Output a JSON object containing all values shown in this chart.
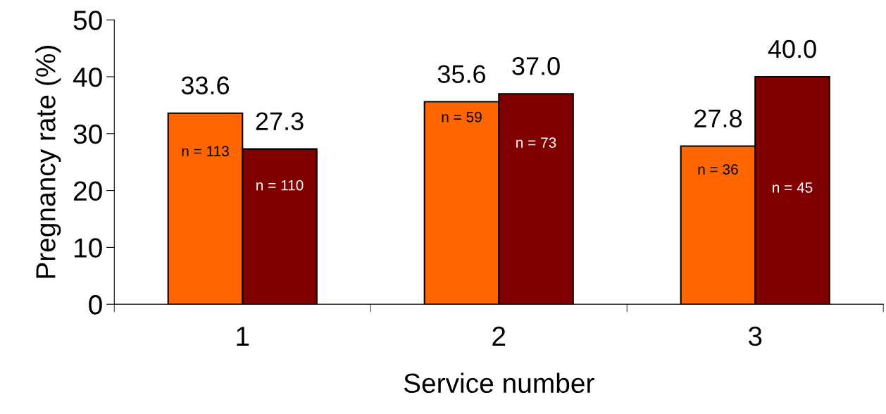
{
  "chart_data": {
    "type": "bar",
    "xlabel": "Service number",
    "ylabel": "Pregnancy rate (%)",
    "categories": [
      "1",
      "2",
      "3"
    ],
    "series": [
      {
        "color": "#ff6600",
        "values": [
          33.6,
          35.6,
          27.8
        ],
        "value_labels": [
          "33.6",
          "35.6",
          "27.8"
        ]
      },
      {
        "color": "#800000",
        "values": [
          27.3,
          37.0,
          40.0
        ],
        "value_labels": [
          "27.3",
          "37.0",
          "40.0"
        ]
      }
    ],
    "ylim": [
      0,
      50
    ],
    "yticks": [
      0,
      10,
      20,
      30,
      40,
      50
    ],
    "grid": false,
    "legend": false,
    "annotations": [
      {
        "text": "n = 113",
        "x": "1",
        "y": 26.7
      },
      {
        "text": "n = 110",
        "x": "1",
        "y": 20.7
      },
      {
        "text": "n = 59",
        "x": "2",
        "y": 32.7
      },
      {
        "text": "n = 73",
        "x": "2",
        "y": 28.2
      },
      {
        "text": "n = 36",
        "x": "3",
        "y": 23.5
      },
      {
        "text": "n = 45",
        "x": "3",
        "y": 20.3
      }
    ]
  }
}
